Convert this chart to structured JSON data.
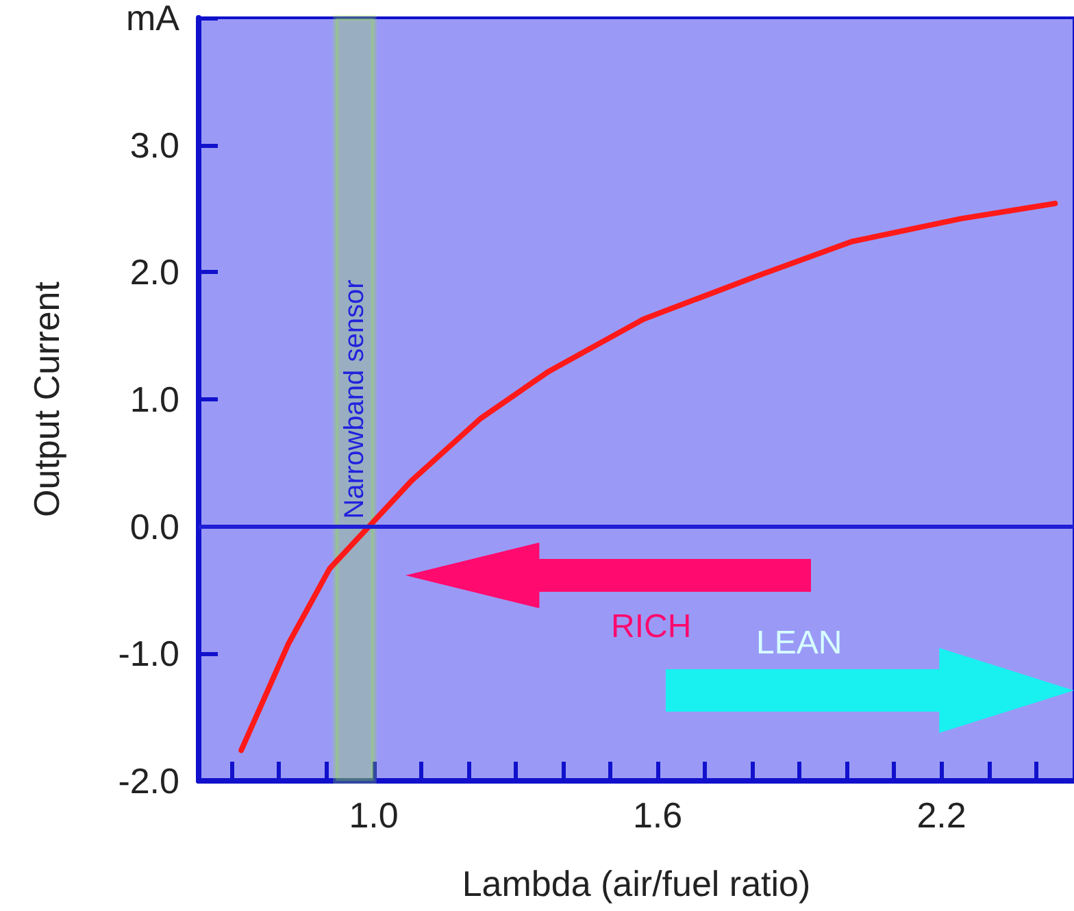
{
  "chart_data": {
    "type": "line",
    "xlabel": "Lambda (air/fuel ratio)",
    "ylabel": "Output Current",
    "x": [
      0.72,
      0.82,
      0.907,
      1.0,
      1.08,
      1.226,
      1.37,
      1.57,
      1.81,
      2.01,
      2.24,
      2.44
    ],
    "series": [
      {
        "color": "#ff1a1a",
        "values": [
          -1.76,
          -0.92,
          -0.33,
          0.04,
          0.36,
          0.85,
          1.22,
          1.63,
          1.97,
          2.24,
          2.42,
          2.54
        ]
      }
    ],
    "xlim": [
      0.63,
      2.48
    ],
    "xticks": [
      {
        "value": 0.7,
        "label": null
      },
      {
        "value": 0.8,
        "label": null
      },
      {
        "value": 0.9,
        "label": null
      },
      {
        "value": 1.0,
        "label": "1.0"
      },
      {
        "value": 1.1,
        "label": null
      },
      {
        "value": 1.2,
        "label": null
      },
      {
        "value": 1.3,
        "label": null
      },
      {
        "value": 1.4,
        "label": null
      },
      {
        "value": 1.5,
        "label": null
      },
      {
        "value": 1.6,
        "label": "1.6"
      },
      {
        "value": 1.7,
        "label": null
      },
      {
        "value": 1.8,
        "label": null
      },
      {
        "value": 1.9,
        "label": null
      },
      {
        "value": 2.0,
        "label": null
      },
      {
        "value": 2.1,
        "label": null
      },
      {
        "value": 2.2,
        "label": "2.2"
      },
      {
        "value": 2.3,
        "label": null
      },
      {
        "value": 2.4,
        "label": null
      }
    ],
    "ylim": [
      -2,
      4
    ],
    "yticks": [
      {
        "value": -2,
        "label": "-2.0"
      },
      {
        "value": -1,
        "label": "-1.0"
      },
      {
        "value": 0,
        "label": "0.0"
      },
      {
        "value": 1,
        "label": "1.0"
      },
      {
        "value": 2,
        "label": "2.0"
      },
      {
        "value": 3,
        "label": "3.0"
      },
      {
        "value": 4,
        "label": "mA"
      }
    ],
    "ref_lines": [
      {
        "axis": "y",
        "value": 0,
        "color": "#1f1fd6"
      }
    ],
    "bands": [
      {
        "axis": "x",
        "from": 0.92,
        "to": 1.0,
        "label": "Narrowband sensor",
        "color": "#99ee22"
      }
    ],
    "annotations": [
      "RICH",
      "LEAN"
    ],
    "grid": false,
    "marker": "none",
    "line_style": "solid"
  }
}
